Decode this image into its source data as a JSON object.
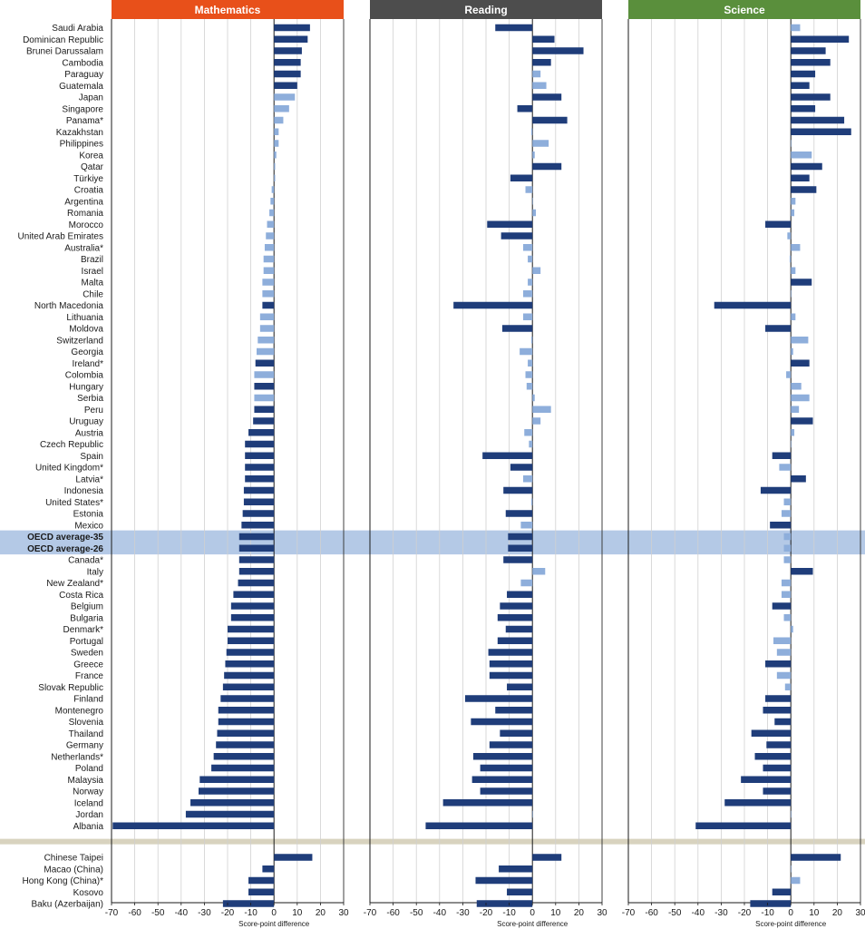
{
  "colors": {
    "mathematics": "#e8501a",
    "reading": "#4d4d4d",
    "science": "#5a8f3c",
    "bar_significant": "#1f3d7a",
    "bar_not_significant": "#8eaedb",
    "oecd_highlight": "#b4c9e6",
    "separator": "#d8d3bf"
  },
  "chart_data": {
    "type": "bar",
    "orientation": "horizontal",
    "xlabel": "Score-point difference",
    "xlim": [
      -70,
      30
    ],
    "xticks": [
      "-70",
      "-60",
      "-50",
      "-40",
      "-30",
      "-20",
      "-10",
      "0",
      "10",
      "20",
      "30"
    ],
    "grid": true,
    "panels": [
      "Mathematics",
      "Reading",
      "Science"
    ],
    "categories": [
      "Saudi Arabia",
      "Dominican Republic",
      "Brunei Darussalam",
      "Cambodia",
      "Paraguay",
      "Guatemala",
      "Japan",
      "Singapore",
      "Panama*",
      "Kazakhstan",
      "Philippines",
      "Korea",
      "Qatar",
      "Türkiye",
      "Croatia",
      "Argentina",
      "Romania",
      "Morocco",
      "United Arab Emirates",
      "Australia*",
      "Brazil",
      "Israel",
      "Malta",
      "Chile",
      "North Macedonia",
      "Lithuania",
      "Moldova",
      "Switzerland",
      "Georgia",
      "Ireland*",
      "Colombia",
      "Hungary",
      "Serbia",
      "Peru",
      "Uruguay",
      "Austria",
      "Czech Republic",
      "Spain",
      "United Kingdom*",
      "Latvia*",
      "Indonesia",
      "United States*",
      "Estonia",
      "Mexico",
      "OECD average-35",
      "OECD average-26",
      "Canada*",
      "Italy",
      "New Zealand*",
      "Costa Rica",
      "Belgium",
      "Bulgaria",
      "Denmark*",
      "Portugal",
      "Sweden",
      "Greece",
      "France",
      "Slovak Republic",
      "Finland",
      "Montenegro",
      "Slovenia",
      "Thailand",
      "Germany",
      "Netherlands*",
      "Poland",
      "Malaysia",
      "Norway",
      "Iceland",
      "Jordan",
      "Albania",
      "Chinese Taipei",
      "Macao (China)",
      "Hong Kong (China)*",
      "Kosovo",
      "Baku (Azerbaijan)"
    ],
    "highlighted_categories": [
      "OECD average-35",
      "OECD average-26"
    ],
    "series": [
      {
        "name": "Mathematics",
        "values": [
          15.5,
          14.5,
          12,
          11.5,
          11.5,
          10,
          9,
          6.5,
          4,
          2,
          2,
          1,
          0.5,
          0.5,
          -1,
          -1.5,
          -2,
          -3,
          -3.5,
          -4,
          -4.5,
          -4.5,
          -5,
          -5,
          -5,
          -6,
          -6,
          -7,
          -7.5,
          -8,
          -8.5,
          -8.5,
          -8.5,
          -8.5,
          -9,
          -11,
          -12.5,
          -12.5,
          -12.5,
          -12.5,
          -13,
          -13,
          -13.5,
          -14,
          -15,
          -15,
          -15,
          -15,
          -15.5,
          -17.5,
          -18.5,
          -18.5,
          -20,
          -20,
          -20.5,
          -21,
          -21.5,
          -22,
          -23,
          -24,
          -24,
          -24.5,
          -25,
          -26,
          -27,
          -32,
          -32.5,
          -36,
          -38,
          -69.5,
          16.5,
          -5,
          -11,
          -11,
          -22
        ],
        "significant": [
          1,
          1,
          1,
          1,
          1,
          1,
          0,
          0,
          0,
          0,
          0,
          0,
          0,
          0,
          0,
          0,
          0,
          0,
          0,
          0,
          0,
          0,
          0,
          0,
          1,
          0,
          0,
          0,
          0,
          1,
          0,
          1,
          0,
          1,
          1,
          1,
          1,
          1,
          1,
          1,
          1,
          1,
          1,
          1,
          1,
          1,
          1,
          1,
          1,
          1,
          1,
          1,
          1,
          1,
          1,
          1,
          1,
          1,
          1,
          1,
          1,
          1,
          1,
          1,
          1,
          1,
          1,
          1,
          1,
          1,
          1,
          1,
          1,
          1,
          1
        ]
      },
      {
        "name": "Reading",
        "values": [
          -16,
          9.5,
          22,
          8,
          3.5,
          6,
          12.5,
          -6.5,
          15,
          -0.5,
          7,
          1,
          12.5,
          -9.5,
          -3,
          0,
          1.5,
          -19.5,
          -13.5,
          -4,
          -2,
          3.5,
          -2,
          -4,
          -34,
          -4,
          -13,
          -0.5,
          -5.5,
          -2,
          -3,
          -2.5,
          1,
          8,
          3.5,
          -3.5,
          -1.5,
          -21.5,
          -9.5,
          -4,
          -12.5,
          -0.5,
          -11.5,
          -5,
          -10.5,
          -10.5,
          -12.5,
          5.5,
          -5,
          -11,
          -14,
          -15,
          -11.5,
          -15,
          -19,
          -18.5,
          -18.5,
          -11,
          -29,
          -16,
          -26.5,
          -14,
          -18.5,
          -25.5,
          -22.5,
          -26,
          -22.5,
          -38.5,
          0,
          -46,
          12.5,
          -14.5,
          -24.5,
          -11,
          -24
        ],
        "significant": [
          1,
          1,
          1,
          1,
          0,
          0,
          1,
          1,
          1,
          0,
          0,
          0,
          1,
          1,
          0,
          0,
          0,
          1,
          1,
          0,
          0,
          0,
          0,
          0,
          1,
          0,
          1,
          0,
          0,
          0,
          0,
          0,
          0,
          0,
          0,
          0,
          0,
          1,
          1,
          0,
          1,
          0,
          1,
          0,
          1,
          1,
          1,
          0,
          0,
          1,
          1,
          1,
          1,
          1,
          1,
          1,
          1,
          1,
          1,
          1,
          1,
          1,
          1,
          1,
          1,
          1,
          1,
          1,
          0,
          1,
          1,
          1,
          1,
          1,
          1
        ]
      },
      {
        "name": "Science",
        "values": [
          4,
          25,
          15,
          17,
          10.5,
          8,
          17,
          10.5,
          23,
          26,
          0,
          9,
          13.5,
          8,
          11,
          2,
          1.5,
          -11,
          -1.5,
          4,
          -0.5,
          2,
          9,
          0,
          -33,
          2,
          -11,
          7.5,
          1,
          8,
          -2,
          4.5,
          8,
          3.5,
          9.5,
          1.5,
          0,
          -8,
          -5,
          6.5,
          -13,
          -3,
          -4,
          -9,
          -3,
          -3,
          -3,
          9.5,
          -4,
          -4,
          -8,
          -3,
          1,
          -7.5,
          -6,
          -11,
          -6,
          -2.5,
          -11,
          -12,
          -7,
          -17,
          -10.5,
          -15.5,
          -12,
          -21.5,
          -12,
          -28.5,
          0,
          -41,
          21.5,
          0,
          4,
          -8,
          -17.5
        ],
        "significant": [
          0,
          1,
          1,
          1,
          1,
          1,
          1,
          1,
          1,
          1,
          0,
          0,
          1,
          1,
          1,
          0,
          0,
          1,
          0,
          0,
          0,
          0,
          1,
          0,
          1,
          0,
          1,
          0,
          0,
          1,
          0,
          0,
          0,
          0,
          1,
          0,
          0,
          1,
          0,
          1,
          1,
          0,
          0,
          1,
          0,
          0,
          0,
          1,
          0,
          0,
          1,
          0,
          0,
          0,
          0,
          1,
          0,
          0,
          1,
          1,
          1,
          1,
          1,
          1,
          1,
          1,
          1,
          1,
          0,
          1,
          1,
          0,
          0,
          1,
          1
        ]
      }
    ]
  }
}
